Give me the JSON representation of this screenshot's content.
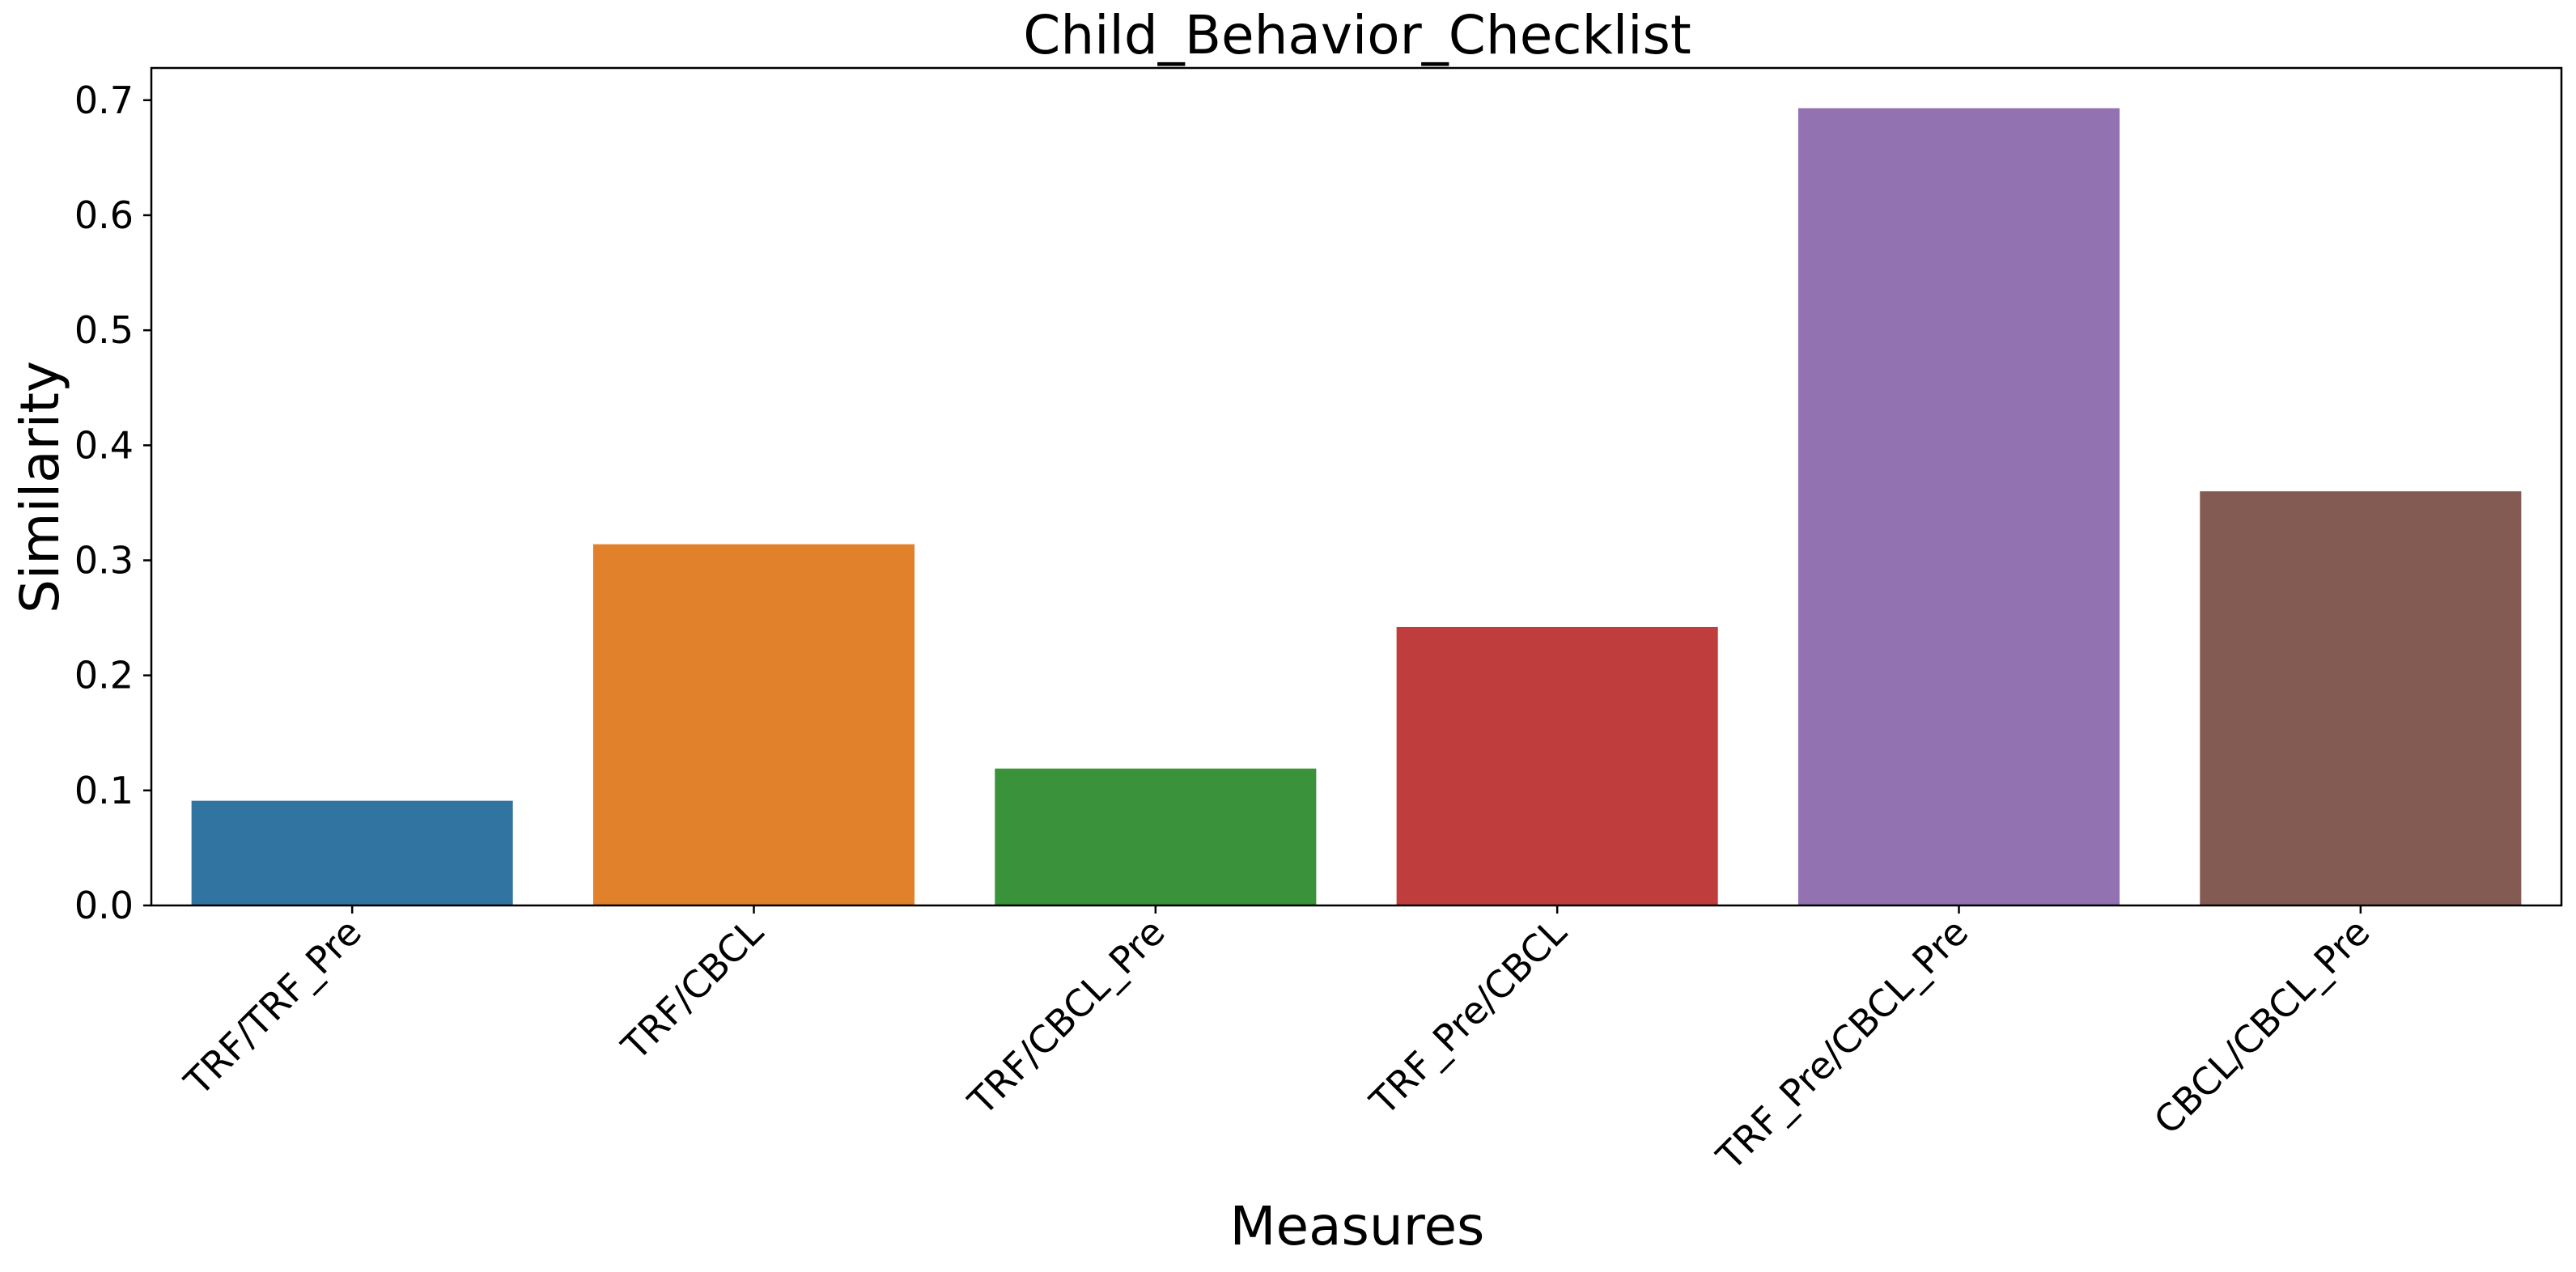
{
  "chart_data": {
    "type": "bar",
    "title": "Child_Behavior_Checklist",
    "xlabel": "Measures",
    "ylabel": "Similarity",
    "categories": [
      "TRF/TRF_Pre",
      "TRF/CBCL",
      "TRF/CBCL_Pre",
      "TRF_Pre/CBCL",
      "TRF_Pre/CBCL_Pre",
      "CBCL/CBCL_Pre"
    ],
    "values": [
      0.091,
      0.314,
      0.119,
      0.242,
      0.693,
      0.36
    ],
    "colors": [
      "#3274a1",
      "#e1812c",
      "#3a923a",
      "#c03d3e",
      "#9372b2",
      "#845b53"
    ],
    "ylim": [
      0,
      0.728
    ],
    "yticks": [
      0.0,
      0.1,
      0.2,
      0.3,
      0.4,
      0.5,
      0.6,
      0.7
    ],
    "ytick_labels": [
      "0.0",
      "0.1",
      "0.2",
      "0.3",
      "0.4",
      "0.5",
      "0.6",
      "0.7"
    ],
    "grid": false,
    "legend": "none"
  }
}
